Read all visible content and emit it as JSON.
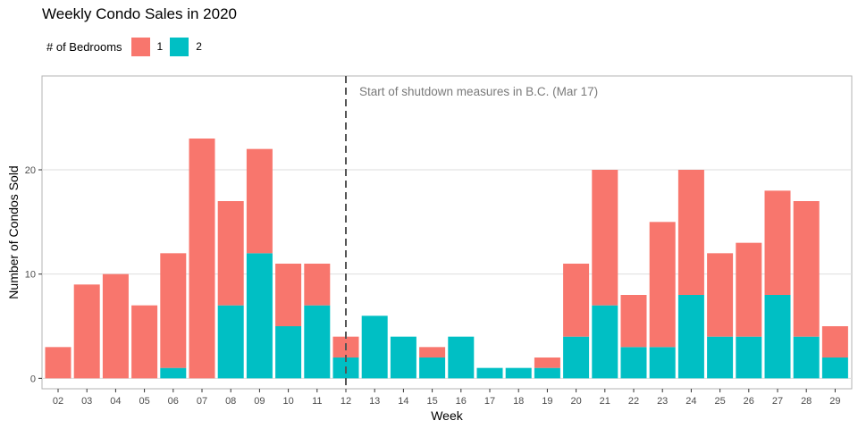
{
  "chart_data": {
    "type": "bar",
    "stacked": true,
    "title": "Weekly Condo Sales in 2020",
    "xlabel": "Week",
    "ylabel": "Number of Condos Sold",
    "ylim": [
      -1,
      29
    ],
    "yticks": [
      0,
      10,
      20
    ],
    "grid": true,
    "legend": {
      "title": "# of Bedrooms",
      "position": "top-left",
      "entries": [
        "1",
        "2"
      ]
    },
    "categories": [
      "02",
      "03",
      "04",
      "05",
      "06",
      "07",
      "08",
      "09",
      "10",
      "11",
      "12",
      "13",
      "14",
      "15",
      "16",
      "17",
      "18",
      "19",
      "20",
      "21",
      "22",
      "23",
      "24",
      "25",
      "26",
      "27",
      "28",
      "29"
    ],
    "series": [
      {
        "name": "1",
        "color": "#F8766D",
        "values": [
          3,
          9,
          10,
          7,
          11,
          23,
          10,
          10,
          6,
          4,
          2,
          0,
          0,
          1,
          0,
          0,
          0,
          1,
          7,
          13,
          5,
          12,
          12,
          8,
          9,
          10,
          13,
          3
        ]
      },
      {
        "name": "2",
        "color": "#00BFC4",
        "values": [
          0,
          0,
          0,
          0,
          1,
          0,
          7,
          12,
          5,
          7,
          2,
          6,
          4,
          2,
          4,
          1,
          1,
          1,
          4,
          7,
          3,
          3,
          8,
          4,
          4,
          8,
          4,
          2
        ]
      }
    ],
    "annotations": [
      {
        "type": "vline",
        "x": "12",
        "style": "dashed",
        "color": "#555555",
        "label": "Start of shutdown measures in B.C. (Mar 17)"
      }
    ]
  }
}
